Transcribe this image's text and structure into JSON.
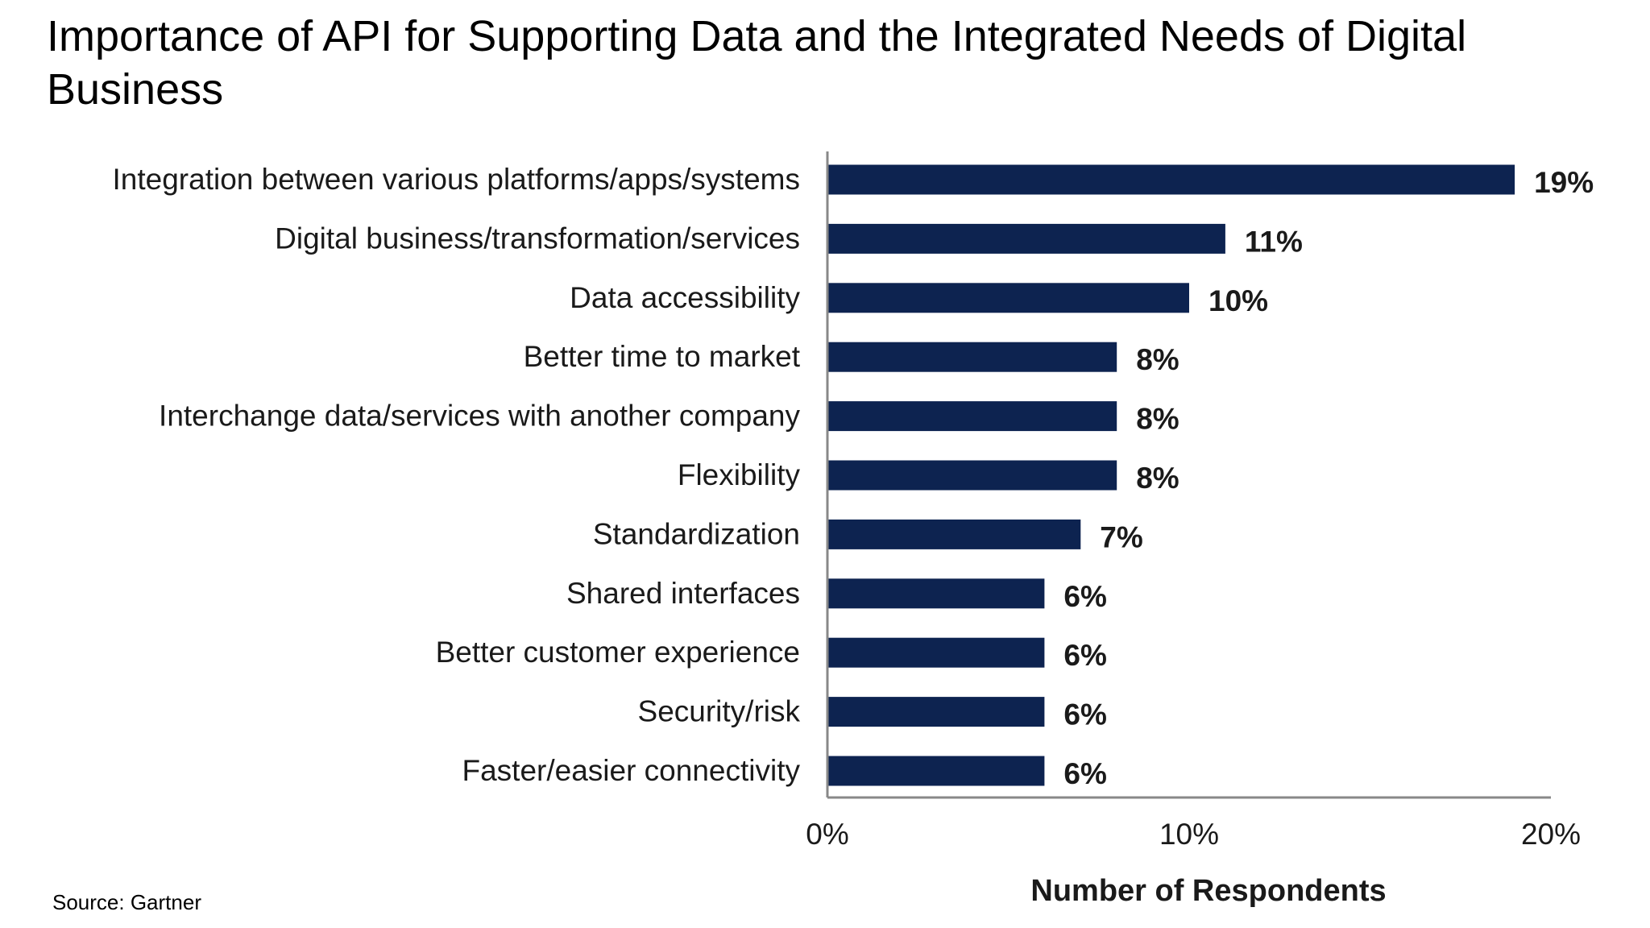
{
  "slide": {
    "title": "Importance of API for Supporting Data and the Integrated Needs of Digital Business",
    "source": "Source: Gartner"
  },
  "chart_data": {
    "type": "bar",
    "orientation": "horizontal",
    "categories": [
      "Integration between various platforms/apps/systems",
      "Digital business/transformation/services",
      "Data accessibility",
      "Better time to market",
      "Interchange data/services with another company",
      "Flexibility",
      "Standardization",
      "Shared interfaces",
      "Better customer experience",
      "Security/risk",
      "Faster/easier connectivity"
    ],
    "values": [
      19,
      11,
      10,
      8,
      8,
      8,
      7,
      6,
      6,
      6,
      6
    ],
    "value_labels": [
      "19%",
      "11%",
      "10%",
      "8%",
      "8%",
      "8%",
      "7%",
      "6%",
      "6%",
      "6%",
      "6%"
    ],
    "xlim": [
      0,
      20
    ],
    "x_ticks": [
      0,
      10,
      20
    ],
    "x_tick_labels": [
      "0%",
      "10%",
      "20%"
    ],
    "xlabel": "Number of Respondents",
    "ylabel": "",
    "grid": false,
    "legend": "none",
    "bar_color": "#0d2350",
    "axis_color": "#888888"
  }
}
